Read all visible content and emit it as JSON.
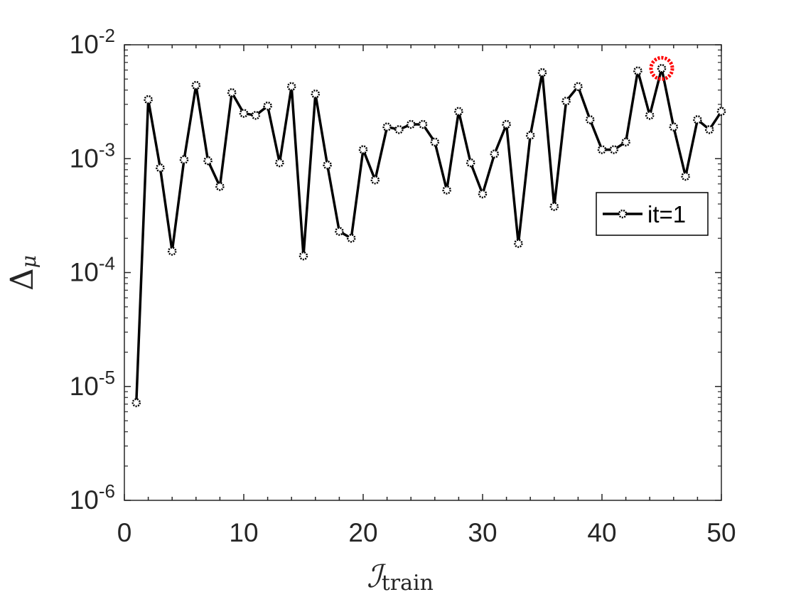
{
  "chart_data": {
    "type": "line",
    "xlabel": "ℐ",
    "xlabel_sub": "train",
    "ylabel": "Δ",
    "ylabel_sub": "μ",
    "yscale": "log",
    "xlim": [
      0,
      50
    ],
    "ylim": [
      1e-06,
      0.01
    ],
    "xticks": [
      0,
      10,
      20,
      30,
      40,
      50
    ],
    "yticks": [
      {
        "base": "10",
        "exp": "-6",
        "value": 1e-06
      },
      {
        "base": "10",
        "exp": "-5",
        "value": 1e-05
      },
      {
        "base": "10",
        "exp": "-4",
        "value": 0.0001
      },
      {
        "base": "10",
        "exp": "-3",
        "value": 0.001
      },
      {
        "base": "10",
        "exp": "-2",
        "value": 0.01
      }
    ],
    "grid": false,
    "legend": {
      "placement": "right",
      "entries": [
        "it=1"
      ]
    },
    "highlight": {
      "x": 45,
      "y": 0.0062,
      "color": "#ff0000"
    },
    "series": [
      {
        "name": "it=1",
        "color": "#000000",
        "marker": "circle",
        "x": [
          1,
          2,
          3,
          4,
          5,
          6,
          7,
          8,
          9,
          10,
          11,
          12,
          13,
          14,
          15,
          16,
          17,
          18,
          19,
          20,
          21,
          22,
          23,
          24,
          25,
          26,
          27,
          28,
          29,
          30,
          31,
          32,
          33,
          34,
          35,
          36,
          37,
          38,
          39,
          40,
          41,
          42,
          43,
          44,
          45,
          46,
          47,
          48,
          49,
          50
        ],
        "y": [
          7.2e-06,
          0.0033,
          0.00083,
          0.000154,
          0.00098,
          0.0044,
          0.00096,
          0.00057,
          0.0038,
          0.0025,
          0.0024,
          0.0029,
          0.00092,
          0.0043,
          0.00014,
          0.0037,
          0.00088,
          0.00023,
          0.0002,
          0.0012,
          0.00065,
          0.0019,
          0.0018,
          0.002,
          0.002,
          0.0014,
          0.00053,
          0.0026,
          0.00092,
          0.00049,
          0.0011,
          0.002,
          0.00018,
          0.0016,
          0.0057,
          0.00038,
          0.0032,
          0.0043,
          0.0022,
          0.0012,
          0.0012,
          0.0014,
          0.0059,
          0.0024,
          0.0062,
          0.0019,
          0.0007,
          0.0022,
          0.0018,
          0.0026
        ]
      }
    ]
  }
}
